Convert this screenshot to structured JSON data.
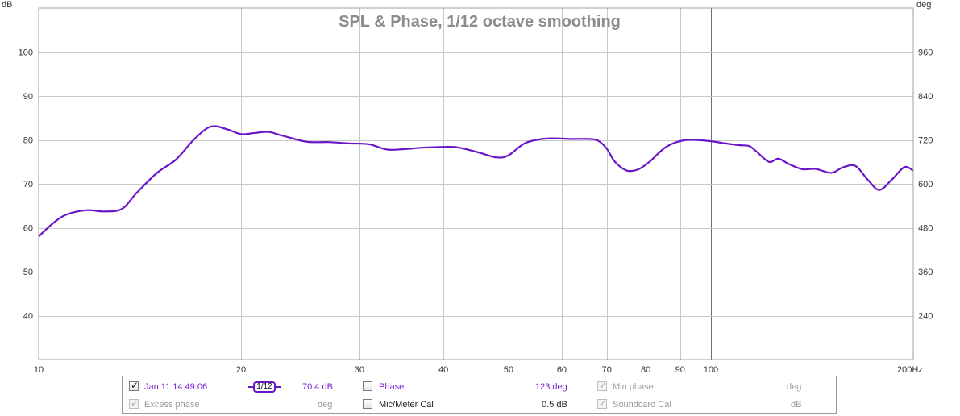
{
  "chart_data": {
    "type": "line",
    "title": "SPL & Phase, 1/12 octave smoothing",
    "x_scale": "log",
    "xlim": [
      10,
      200
    ],
    "ylim": [
      30,
      110
    ],
    "y2lim": [
      120,
      1080
    ],
    "ylabel": "dB",
    "y2label": "deg",
    "x_ticks": [
      10,
      20,
      30,
      40,
      50,
      60,
      70,
      80,
      90,
      100,
      200
    ],
    "x_tick_labels": [
      "10",
      "20",
      "30",
      "40",
      "50",
      "60",
      "70",
      "80",
      "90",
      "100",
      "200Hz"
    ],
    "y_ticks": [
      40,
      50,
      60,
      70,
      80,
      90,
      100
    ],
    "y2_ticks": [
      240,
      360,
      480,
      600,
      720,
      840,
      960
    ],
    "grid": true,
    "series": [
      {
        "name": "Jan 11 14:49:06",
        "color": "#6a16c8",
        "x": [
          10,
          10.5,
          11,
          11.8,
          12.5,
          13.3,
          14,
          15,
          16,
          17,
          18,
          19,
          20,
          21,
          22,
          23,
          25,
          27,
          29,
          31,
          33,
          35,
          37,
          40,
          42,
          45,
          48,
          50,
          53,
          57,
          62,
          66,
          68,
          70,
          72,
          75,
          78,
          81,
          86,
          92,
          100,
          104,
          110,
          114,
          117,
          122,
          126,
          131,
          137,
          143,
          151,
          157,
          164,
          171,
          178,
          186,
          194,
          200
        ],
        "y": [
          58,
          61,
          63,
          64,
          63.7,
          64.3,
          68,
          72.5,
          75.5,
          80,
          83,
          82.5,
          81.3,
          81.6,
          81.8,
          81,
          79.6,
          79.5,
          79.2,
          79,
          77.8,
          77.9,
          78.2,
          78.4,
          78.3,
          77.2,
          76,
          76.5,
          79.3,
          80.3,
          80.2,
          80.2,
          79.8,
          78,
          75,
          73,
          73.3,
          75,
          78.5,
          80,
          79.7,
          79.3,
          78.8,
          78.6,
          77.3,
          75,
          75.7,
          74.4,
          73.3,
          73.4,
          72.5,
          73.7,
          74.1,
          71,
          68.6,
          71,
          73.8,
          73
        ]
      }
    ]
  },
  "legend": {
    "series_checked_mark": "✓",
    "series_name": "Jan 11 14:49:06",
    "smoothing_label": "1/12",
    "series_value": "70.4 dB",
    "phase_label": "Phase",
    "phase_value": "123 deg",
    "min_phase_label": "Min phase",
    "min_phase_unit": "deg",
    "excess_phase_label": "Excess phase",
    "excess_phase_unit": "deg",
    "mic_cal_label": "Mic/Meter Cal",
    "mic_cal_value": "0.5 dB",
    "soundcard_cal_label": "Soundcard Cal",
    "soundcard_cal_unit": "dB"
  }
}
